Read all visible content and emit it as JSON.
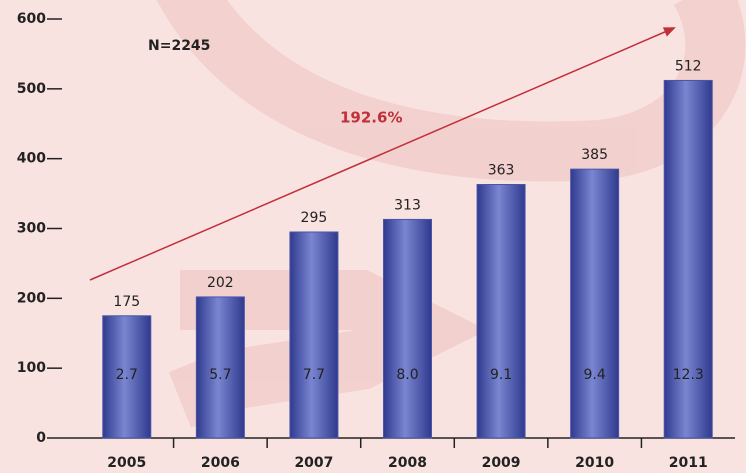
{
  "chart_data": {
    "type": "bar",
    "categories": [
      "2005",
      "2006",
      "2007",
      "2008",
      "2009",
      "2010",
      "2011"
    ],
    "values": [
      175,
      202,
      295,
      313,
      363,
      385,
      512
    ],
    "inner_values": [
      2.7,
      5.7,
      7.7,
      8.0,
      9.1,
      9.4,
      12.3
    ],
    "inner_value_labels": [
      "2.7",
      "5.7",
      "7.7",
      "8.0",
      "9.1",
      "9.4",
      "12.3"
    ],
    "color": "#4a55a8",
    "ylim": [
      0,
      600
    ],
    "yticks": [
      0,
      100,
      200,
      300,
      400,
      500,
      600
    ],
    "annotations": [
      "N=2245",
      "192.6%"
    ],
    "trend_color": "#c0303a"
  }
}
